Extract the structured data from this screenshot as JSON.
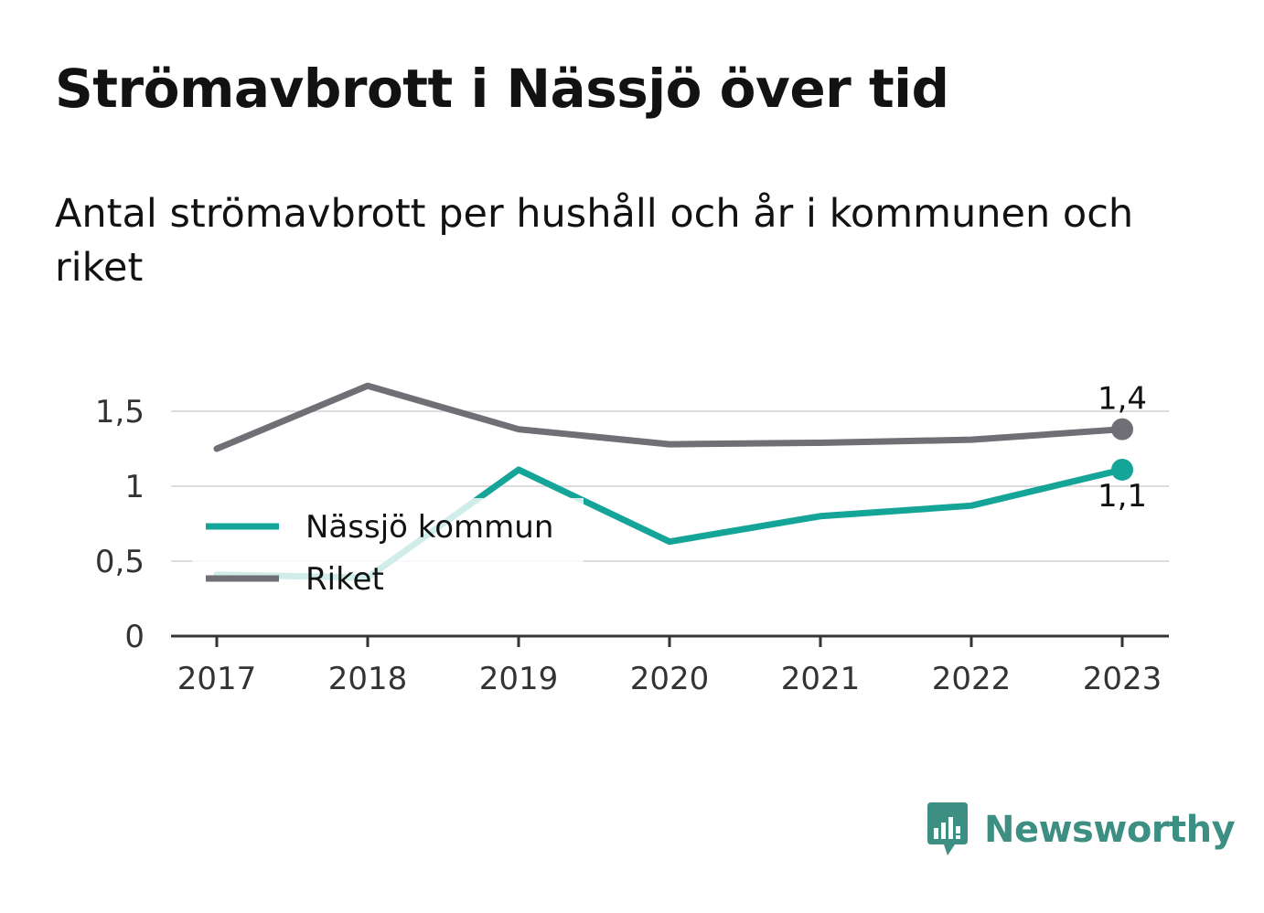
{
  "title": "Strömavbrott i Nässjö över tid",
  "subtitle": "Antal strömavbrott per hushåll och år i kommunen och riket",
  "brand": {
    "name": "Newsworthy",
    "icon": "newsworthy-logo-icon",
    "color": "#3d8f83"
  },
  "chart_data": {
    "type": "line",
    "title": "Strömavbrott i Nässjö över tid",
    "subtitle": "Antal strömavbrott per hushåll och år i kommunen och riket",
    "xlabel": "",
    "ylabel": "",
    "categories": [
      "2017",
      "2018",
      "2019",
      "2020",
      "2021",
      "2022",
      "2023"
    ],
    "yticks": [
      0,
      0.5,
      1,
      1.5
    ],
    "ytick_labels": [
      "0",
      "0,5",
      "1",
      "1,5"
    ],
    "ylim": [
      0,
      1.6
    ],
    "grid": true,
    "legend_position": "bottom-left",
    "series": [
      {
        "name": "Nässjö kommun",
        "color": "#14a498",
        "values": [
          0.41,
          0.39,
          1.11,
          0.63,
          0.8,
          0.87,
          1.11
        ],
        "end_label": "1,1",
        "end_label_position": "below"
      },
      {
        "name": "Riket",
        "color": "#6f6f75",
        "values": [
          1.25,
          1.67,
          1.38,
          1.28,
          1.29,
          1.31,
          1.38
        ],
        "end_label": "1,4",
        "end_label_position": "above"
      }
    ]
  }
}
